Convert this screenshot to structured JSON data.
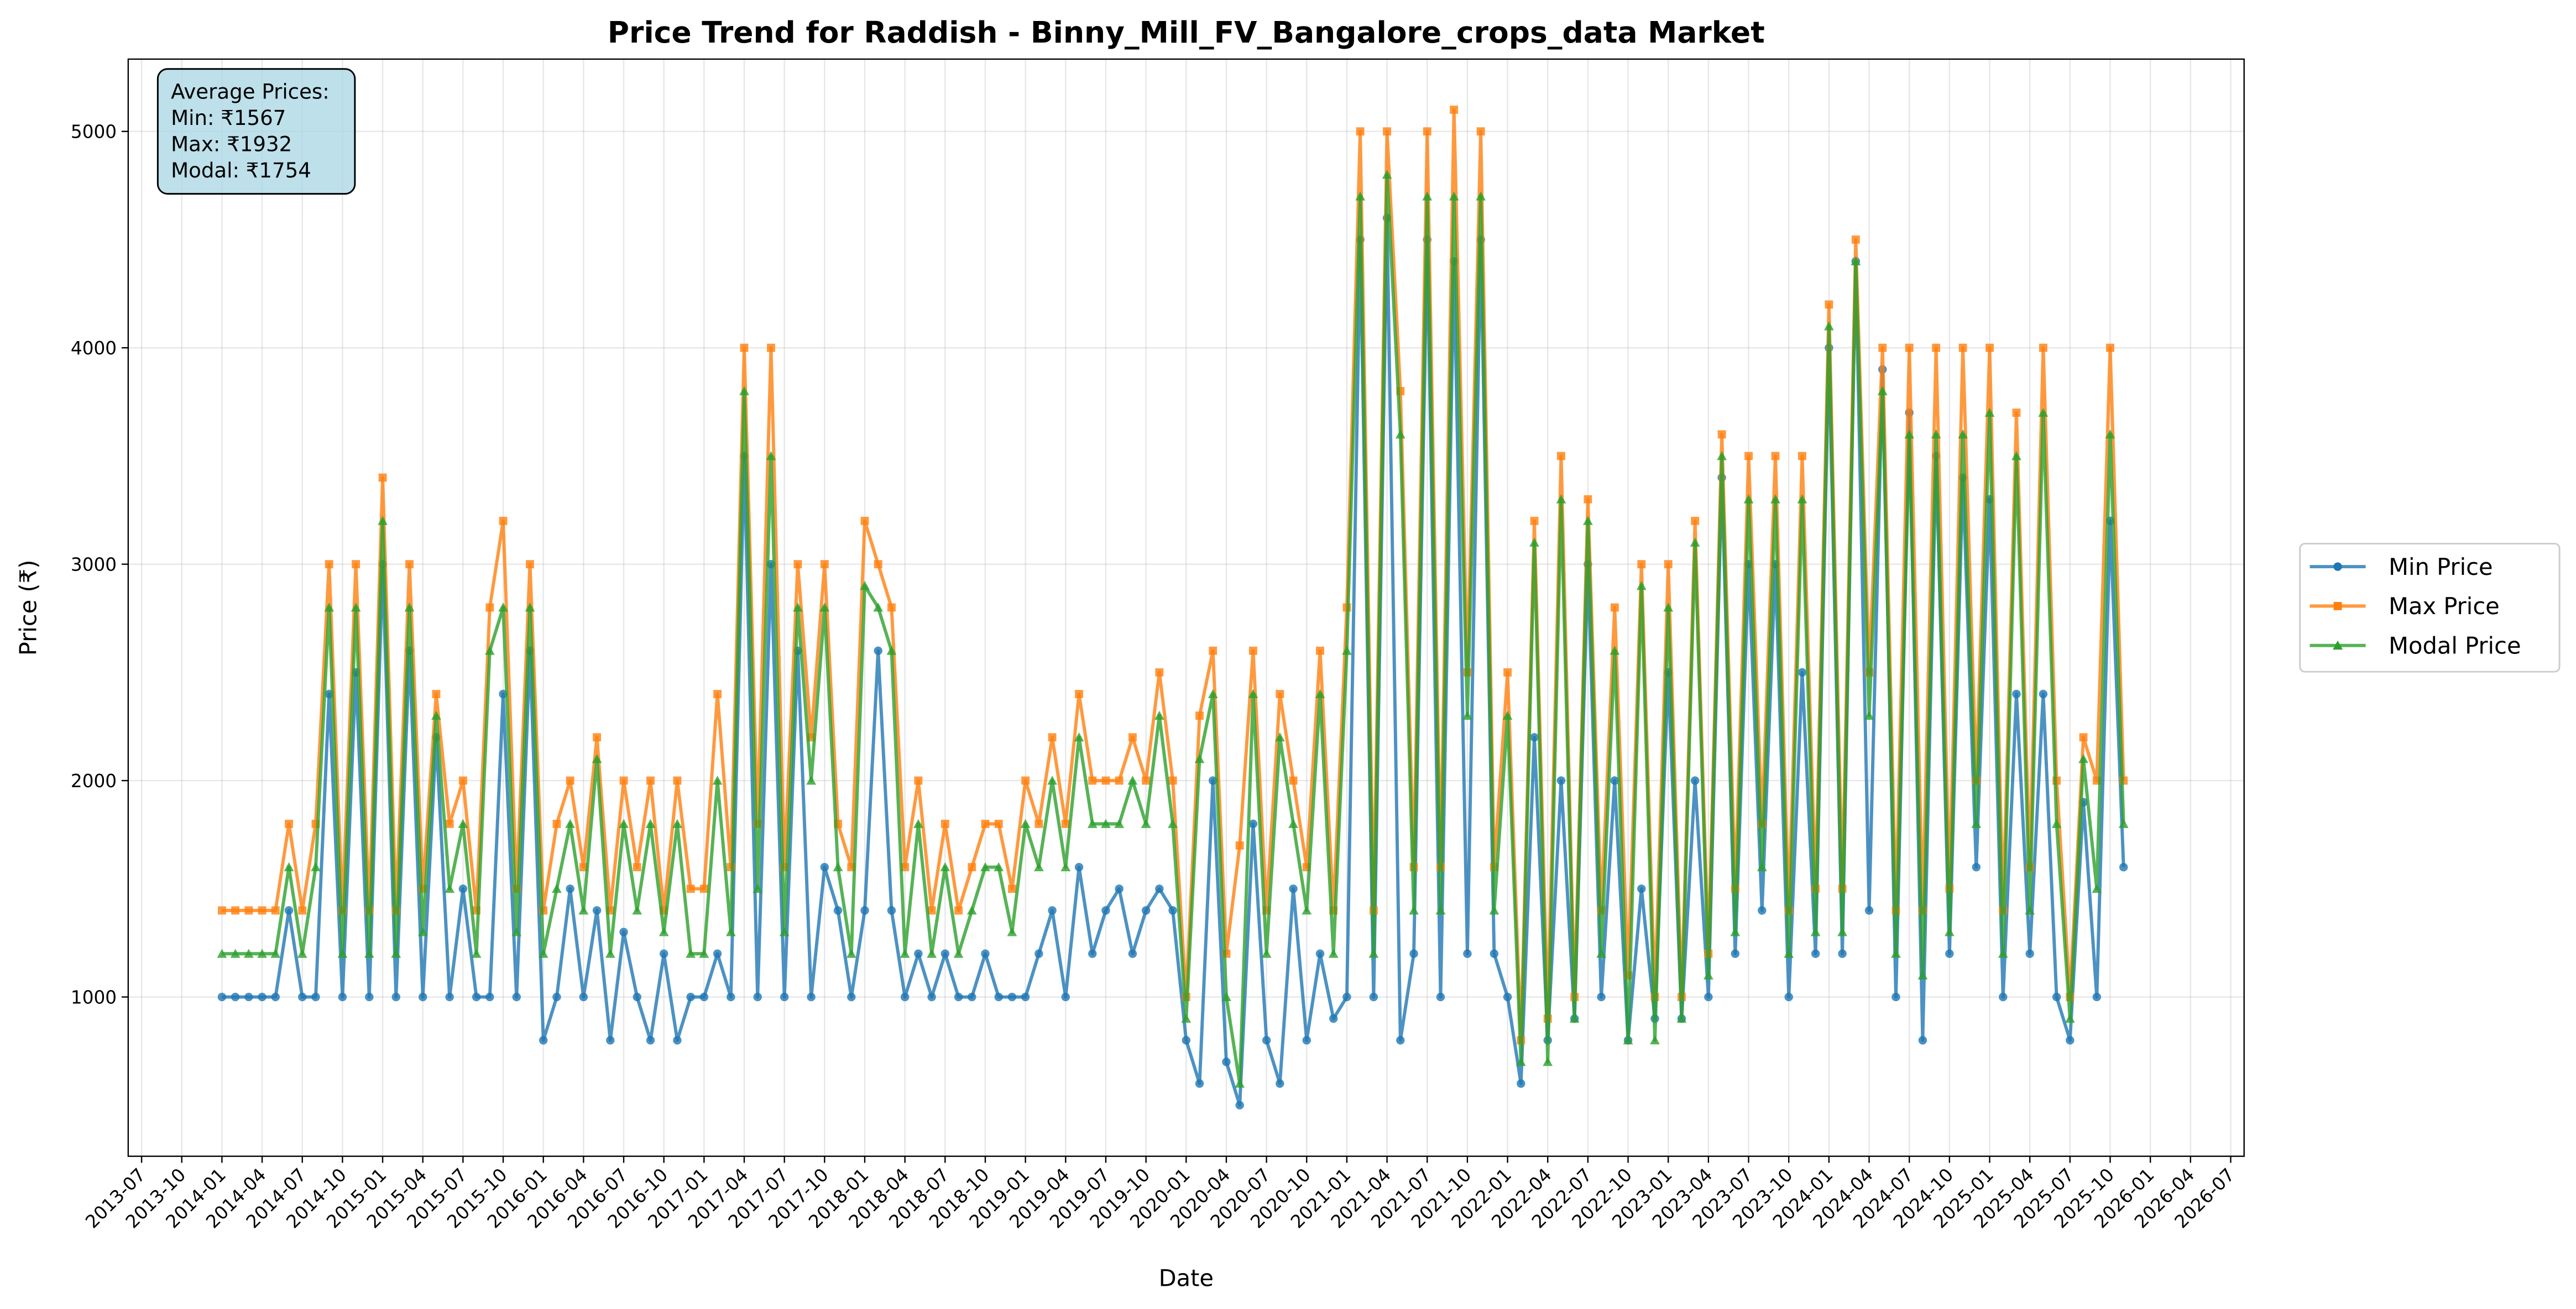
{
  "chart_data": {
    "type": "line",
    "title": "Price Trend for Raddish - Binny_Mill_FV_Bangalore_crops_data Market",
    "xlabel": "Date",
    "ylabel": "Price (₹)",
    "annotation": [
      "Average Prices:",
      "Min: ₹1567",
      "Max: ₹1932",
      "Modal: ₹1754"
    ],
    "legend": "right",
    "grid": true,
    "xlim": [
      "2013-06",
      "2026-08"
    ],
    "xticks": [
      "2013-07",
      "2013-10",
      "2014-01",
      "2014-04",
      "2014-07",
      "2014-10",
      "2015-01",
      "2015-04",
      "2015-07",
      "2015-10",
      "2016-01",
      "2016-04",
      "2016-07",
      "2016-10",
      "2017-01",
      "2017-04",
      "2017-07",
      "2017-10",
      "2018-01",
      "2018-04",
      "2018-07",
      "2018-10",
      "2019-01",
      "2019-04",
      "2019-07",
      "2019-10",
      "2020-01",
      "2020-04",
      "2020-07",
      "2020-10",
      "2021-01",
      "2021-04",
      "2021-07",
      "2021-10",
      "2022-01",
      "2022-04",
      "2022-07",
      "2022-10",
      "2023-01",
      "2023-04",
      "2023-07",
      "2023-10",
      "2024-01",
      "2024-04",
      "2024-07",
      "2024-10",
      "2025-01",
      "2025-04",
      "2025-07",
      "2025-10",
      "2026-01",
      "2026-04",
      "2026-07"
    ],
    "ylim": [
      264,
      5334
    ],
    "yticks": [
      1000,
      2000,
      3000,
      4000,
      5000
    ],
    "x": [
      "2014-01",
      "2014-02",
      "2014-03",
      "2014-04",
      "2014-05",
      "2014-06",
      "2014-07",
      "2014-08",
      "2014-09",
      "2014-10",
      "2014-11",
      "2014-12",
      "2015-01",
      "2015-02",
      "2015-03",
      "2015-04",
      "2015-05",
      "2015-06",
      "2015-07",
      "2015-08",
      "2015-09",
      "2015-10",
      "2015-11",
      "2015-12",
      "2016-01",
      "2016-02",
      "2016-03",
      "2016-04",
      "2016-05",
      "2016-06",
      "2016-07",
      "2016-08",
      "2016-09",
      "2016-10",
      "2016-11",
      "2016-12",
      "2017-01",
      "2017-02",
      "2017-03",
      "2017-04",
      "2017-05",
      "2017-06",
      "2017-07",
      "2017-08",
      "2017-09",
      "2017-10",
      "2017-11",
      "2017-12",
      "2018-01",
      "2018-02",
      "2018-03",
      "2018-04",
      "2018-05",
      "2018-06",
      "2018-07",
      "2018-08",
      "2018-09",
      "2018-10",
      "2018-11",
      "2018-12",
      "2019-01",
      "2019-02",
      "2019-03",
      "2019-04",
      "2019-05",
      "2019-06",
      "2019-07",
      "2019-08",
      "2019-09",
      "2019-10",
      "2019-11",
      "2019-12",
      "2020-01",
      "2020-02",
      "2020-03",
      "2020-04",
      "2020-05",
      "2020-06",
      "2020-07",
      "2020-08",
      "2020-09",
      "2020-10",
      "2020-11",
      "2020-12",
      "2021-01",
      "2021-02",
      "2021-03",
      "2021-04",
      "2021-05",
      "2021-06",
      "2021-07",
      "2021-08",
      "2021-09",
      "2021-10",
      "2021-11",
      "2021-12",
      "2022-01",
      "2022-02",
      "2022-03",
      "2022-04",
      "2022-05",
      "2022-06",
      "2022-07",
      "2022-08",
      "2022-09",
      "2022-10",
      "2022-11",
      "2022-12",
      "2023-01",
      "2023-02",
      "2023-03",
      "2023-04",
      "2023-05",
      "2023-06",
      "2023-07",
      "2023-08",
      "2023-09",
      "2023-10",
      "2023-11",
      "2023-12",
      "2024-01",
      "2024-02",
      "2024-03",
      "2024-04",
      "2024-05",
      "2024-06",
      "2024-07",
      "2024-08",
      "2024-09",
      "2024-10",
      "2024-11",
      "2024-12",
      "2025-01",
      "2025-02",
      "2025-03",
      "2025-04",
      "2025-05",
      "2025-06",
      "2025-07",
      "2025-08",
      "2025-09",
      "2025-10",
      "2025-11"
    ],
    "series": [
      {
        "name": "Min Price",
        "color": "#1f77b4",
        "marker": "circle",
        "values": [
          1000,
          1000,
          1000,
          1000,
          1000,
          1400,
          1000,
          1000,
          2400,
          1000,
          2500,
          1000,
          3000,
          1000,
          2600,
          1000,
          2200,
          1000,
          1500,
          1000,
          1000,
          2400,
          1000,
          2600,
          800,
          1000,
          1500,
          1000,
          1400,
          800,
          1300,
          1000,
          800,
          1200,
          800,
          1000,
          1000,
          1200,
          1000,
          3500,
          1000,
          3000,
          1000,
          2600,
          1000,
          1600,
          1400,
          1000,
          1400,
          2600,
          1400,
          1000,
          1200,
          1000,
          1200,
          1000,
          1000,
          1200,
          1000,
          1000,
          1000,
          1200,
          1400,
          1000,
          1600,
          1200,
          1400,
          1500,
          1200,
          1400,
          1500,
          1400,
          800,
          600,
          2000,
          700,
          500,
          1800,
          800,
          600,
          1500,
          800,
          1200,
          900,
          1000,
          4500,
          1000,
          4600,
          800,
          1200,
          4500,
          1000,
          4400,
          1200,
          4500,
          1200,
          1000,
          600,
          2200,
          800,
          2000,
          900,
          3000,
          1000,
          2000,
          800,
          1500,
          900,
          2500,
          900,
          2000,
          1000,
          3400,
          1200,
          3000,
          1400,
          3000,
          1000,
          2500,
          1200,
          4000,
          1200,
          4400,
          1400,
          3900,
          1000,
          3700,
          800,
          3500,
          1200,
          3400,
          1600,
          3300,
          1000,
          2400,
          1200,
          2400,
          1000,
          800,
          1900,
          1000,
          3200,
          1600
        ]
      },
      {
        "name": "Max Price",
        "color": "#ff7f0e",
        "marker": "square",
        "values": [
          1400,
          1400,
          1400,
          1400,
          1400,
          1800,
          1400,
          1800,
          3000,
          1400,
          3000,
          1400,
          3400,
          1400,
          3000,
          1500,
          2400,
          1800,
          2000,
          1400,
          2800,
          3200,
          1500,
          3000,
          1400,
          1800,
          2000,
          1600,
          2200,
          1400,
          2000,
          1600,
          2000,
          1400,
          2000,
          1500,
          1500,
          2400,
          1600,
          4000,
          1800,
          4000,
          1600,
          3000,
          2200,
          3000,
          1800,
          1600,
          3200,
          3000,
          2800,
          1600,
          2000,
          1400,
          1800,
          1400,
          1600,
          1800,
          1800,
          1500,
          2000,
          1800,
          2200,
          1800,
          2400,
          2000,
          2000,
          2000,
          2200,
          2000,
          2500,
          2000,
          1000,
          2300,
          2600,
          1200,
          1700,
          2600,
          1400,
          2400,
          2000,
          1600,
          2600,
          1400,
          2800,
          5000,
          1400,
          5000,
          3800,
          1600,
          5000,
          1600,
          5100,
          2500,
          5000,
          1600,
          2500,
          800,
          3200,
          900,
          3500,
          1000,
          3300,
          1400,
          2800,
          1100,
          3000,
          1000,
          3000,
          1000,
          3200,
          1200,
          3600,
          1500,
          3500,
          1800,
          3500,
          1400,
          3500,
          1500,
          4200,
          1500,
          4500,
          2500,
          4000,
          1400,
          4000,
          1400,
          4000,
          1500,
          4000,
          2000,
          4000,
          1400,
          3700,
          1600,
          4000,
          2000,
          1000,
          2200,
          2000,
          4000,
          2000
        ]
      },
      {
        "name": "Modal Price",
        "color": "#2ca02c",
        "marker": "triangle",
        "values": [
          1200,
          1200,
          1200,
          1200,
          1200,
          1600,
          1200,
          1600,
          2800,
          1200,
          2800,
          1200,
          3200,
          1200,
          2800,
          1300,
          2300,
          1500,
          1800,
          1200,
          2600,
          2800,
          1300,
          2800,
          1200,
          1500,
          1800,
          1400,
          2100,
          1200,
          1800,
          1400,
          1800,
          1300,
          1800,
          1200,
          1200,
          2000,
          1300,
          3800,
          1500,
          3500,
          1300,
          2800,
          2000,
          2800,
          1600,
          1200,
          2900,
          2800,
          2600,
          1200,
          1800,
          1200,
          1600,
          1200,
          1400,
          1600,
          1600,
          1300,
          1800,
          1600,
          2000,
          1600,
          2200,
          1800,
          1800,
          1800,
          2000,
          1800,
          2300,
          1800,
          900,
          2100,
          2400,
          1000,
          600,
          2400,
          1200,
          2200,
          1800,
          1400,
          2400,
          1200,
          2600,
          4700,
          1200,
          4800,
          3600,
          1400,
          4700,
          1400,
          4700,
          2300,
          4700,
          1400,
          2300,
          700,
          3100,
          700,
          3300,
          900,
          3200,
          1200,
          2600,
          800,
          2900,
          800,
          2800,
          900,
          3100,
          1100,
          3500,
          1300,
          3300,
          1600,
          3300,
          1200,
          3300,
          1300,
          4100,
          1300,
          4400,
          2300,
          3800,
          1200,
          3600,
          1100,
          3600,
          1300,
          3600,
          1800,
          3700,
          1200,
          3500,
          1400,
          3700,
          1800,
          900,
          2100,
          1500,
          3600,
          1800
        ]
      }
    ]
  }
}
